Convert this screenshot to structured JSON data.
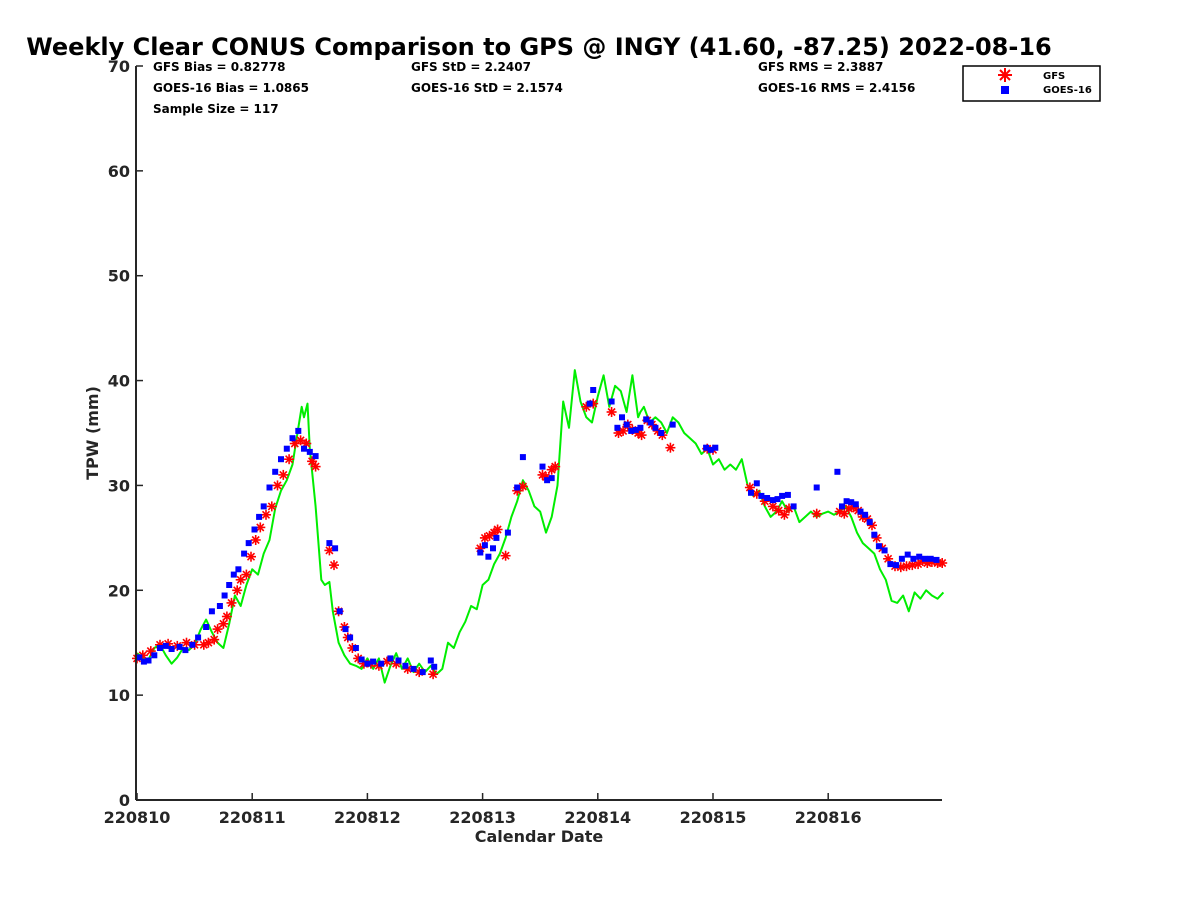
{
  "chart_data": {
    "type": "line",
    "title": "Weekly Clear CONUS Comparison to GPS @ INGY (41.60, -87.25) 2022-08-16",
    "xlabel": "Calendar Date",
    "ylabel": "TPW (mm)",
    "xlim": [
      220810,
      220817
    ],
    "ylim": [
      0,
      70
    ],
    "x_ticks": [
      "220810",
      "220811",
      "220812",
      "220813",
      "220814",
      "220815",
      "220816"
    ],
    "y_ticks": [
      "0",
      "10",
      "20",
      "30",
      "40",
      "50",
      "60",
      "70"
    ],
    "grid": false,
    "legend_position": "top-right",
    "stats": {
      "gfs_bias": "GFS Bias = 0.82778",
      "goes_bias": "GOES-16 Bias = 1.0865",
      "sample_size": "Sample Size = 117",
      "gfs_std": "GFS StD = 2.2407",
      "goes_std": "GOES-16 StD = 2.1574",
      "gfs_rms": "GFS RMS = 2.3887",
      "goes_rms": "GOES-16 RMS = 2.4156"
    },
    "series": [
      {
        "name": "GFS",
        "marker": "asterisk",
        "color": "#ff0000",
        "x": [
          0.0,
          0.05,
          0.12,
          0.2,
          0.27,
          0.35,
          0.43,
          0.5,
          0.58,
          0.62,
          0.67,
          0.7,
          0.75,
          0.78,
          0.82,
          0.87,
          0.9,
          0.95,
          0.99,
          1.03,
          1.07,
          1.12,
          1.17,
          1.22,
          1.27,
          1.32,
          1.37,
          1.42,
          1.47,
          1.52,
          1.55,
          1.67,
          1.71,
          1.75,
          1.8,
          1.83,
          1.87,
          1.92,
          1.97,
          2.03,
          2.1,
          2.17,
          2.25,
          2.35,
          2.45,
          2.57,
          2.98,
          3.02,
          3.06,
          3.1,
          3.13,
          3.2,
          3.3,
          3.35,
          3.52,
          3.55,
          3.6,
          3.63,
          3.9,
          3.96,
          4.12,
          4.18,
          4.22,
          4.26,
          4.3,
          4.35,
          4.38,
          4.43,
          4.47,
          4.52,
          4.56,
          4.63,
          4.95,
          5.0,
          5.32,
          5.38,
          5.45,
          5.52,
          5.57,
          5.62,
          5.66,
          5.9,
          6.1,
          6.14,
          6.18,
          6.22,
          6.26,
          6.3,
          6.34,
          6.38,
          6.42,
          6.47,
          6.52,
          6.58,
          6.63,
          6.68,
          6.73,
          6.78,
          6.82,
          6.86,
          6.9,
          6.95,
          6.99
        ],
        "y": [
          13.5,
          13.8,
          14.2,
          14.8,
          14.9,
          14.7,
          15.0,
          14.8,
          14.8,
          15.0,
          15.3,
          16.3,
          16.8,
          17.5,
          18.8,
          20.0,
          21.0,
          21.5,
          23.2,
          24.8,
          26.0,
          27.2,
          28.0,
          30.0,
          31.0,
          32.5,
          34.0,
          34.3,
          34.0,
          32.3,
          31.8,
          23.8,
          22.4,
          18.0,
          16.5,
          15.5,
          14.5,
          13.5,
          13.0,
          13.0,
          12.8,
          13.2,
          13.0,
          12.5,
          12.2,
          12.0,
          24.0,
          25.0,
          25.2,
          25.5,
          25.8,
          23.3,
          29.5,
          29.9,
          31.0,
          30.8,
          31.5,
          31.8,
          37.5,
          37.8,
          37.0,
          35.0,
          35.2,
          35.8,
          35.3,
          35.0,
          34.8,
          36.2,
          35.8,
          35.2,
          34.8,
          33.6,
          33.5,
          33.4,
          29.8,
          29.2,
          28.5,
          28.0,
          27.6,
          27.2,
          27.8,
          27.3,
          27.5,
          27.3,
          27.8,
          27.9,
          27.6,
          27.0,
          26.8,
          26.2,
          25.0,
          24.0,
          23.0,
          22.3,
          22.2,
          22.3,
          22.4,
          22.5,
          22.8,
          22.6,
          22.7,
          22.6,
          22.6
        ]
      },
      {
        "name": "GOES-16",
        "marker": "square",
        "color": "#0000ff",
        "x": [
          0.02,
          0.06,
          0.1,
          0.15,
          0.2,
          0.25,
          0.3,
          0.37,
          0.42,
          0.48,
          0.53,
          0.6,
          0.65,
          0.72,
          0.76,
          0.8,
          0.84,
          0.88,
          0.93,
          0.97,
          1.02,
          1.06,
          1.1,
          1.15,
          1.2,
          1.25,
          1.3,
          1.35,
          1.4,
          1.45,
          1.5,
          1.55,
          1.67,
          1.72,
          1.76,
          1.81,
          1.85,
          1.9,
          1.95,
          2.0,
          2.05,
          2.12,
          2.2,
          2.27,
          2.33,
          2.4,
          2.48,
          2.55,
          2.58,
          2.98,
          3.02,
          3.05,
          3.09,
          3.12,
          3.22,
          3.3,
          3.35,
          3.52,
          3.56,
          3.6,
          3.93,
          3.96,
          4.12,
          4.17,
          4.21,
          4.25,
          4.29,
          4.33,
          4.37,
          4.42,
          4.46,
          4.5,
          4.55,
          4.65,
          4.94,
          4.98,
          5.02,
          5.33,
          5.38,
          5.42,
          5.47,
          5.52,
          5.56,
          5.6,
          5.65,
          5.7,
          5.9,
          6.08,
          6.12,
          6.16,
          6.2,
          6.24,
          6.28,
          6.32,
          6.36,
          6.4,
          6.44,
          6.49,
          6.54,
          6.59,
          6.64,
          6.69,
          6.74,
          6.79,
          6.84,
          6.89,
          6.94
        ],
        "y": [
          13.6,
          13.2,
          13.3,
          13.8,
          14.5,
          14.7,
          14.4,
          14.6,
          14.3,
          14.8,
          15.5,
          16.5,
          18.0,
          18.5,
          19.5,
          20.5,
          21.5,
          22.0,
          23.5,
          24.5,
          25.8,
          27.0,
          28.0,
          29.8,
          31.3,
          32.5,
          33.5,
          34.5,
          35.2,
          33.5,
          33.2,
          32.8,
          24.5,
          24.0,
          18.0,
          16.3,
          15.5,
          14.5,
          13.4,
          13.0,
          13.2,
          13.0,
          13.5,
          13.3,
          12.8,
          12.5,
          12.2,
          13.3,
          12.7,
          23.6,
          24.3,
          23.2,
          24.0,
          25.0,
          25.5,
          29.8,
          32.7,
          31.8,
          30.5,
          30.7,
          37.8,
          39.1,
          38.0,
          35.5,
          36.5,
          35.8,
          35.2,
          35.3,
          35.5,
          36.3,
          36.0,
          35.5,
          35.0,
          35.8,
          33.6,
          33.4,
          33.6,
          29.3,
          30.2,
          29.0,
          28.8,
          28.6,
          28.7,
          29.0,
          29.1,
          28.0,
          29.8,
          31.3,
          28.0,
          28.5,
          28.4,
          28.2,
          27.5,
          27.2,
          26.5,
          25.3,
          24.2,
          23.8,
          22.5,
          22.4,
          23.0,
          23.4,
          23.0,
          23.2,
          23.0,
          23.0,
          22.9
        ]
      },
      {
        "name": "GPS",
        "marker": "line",
        "color": "#00ee00",
        "x": [
          0.0,
          0.05,
          0.1,
          0.15,
          0.2,
          0.25,
          0.3,
          0.35,
          0.4,
          0.45,
          0.5,
          0.55,
          0.6,
          0.65,
          0.7,
          0.75,
          0.8,
          0.85,
          0.9,
          0.95,
          1.0,
          1.05,
          1.1,
          1.15,
          1.2,
          1.25,
          1.3,
          1.35,
          1.4,
          1.43,
          1.45,
          1.48,
          1.5,
          1.55,
          1.6,
          1.63,
          1.67,
          1.7,
          1.75,
          1.8,
          1.85,
          1.9,
          1.95,
          2.0,
          2.05,
          2.1,
          2.15,
          2.2,
          2.25,
          2.3,
          2.35,
          2.4,
          2.45,
          2.5,
          2.55,
          2.6,
          2.65,
          2.7,
          2.75,
          2.8,
          2.85,
          2.9,
          2.95,
          3.0,
          3.05,
          3.1,
          3.15,
          3.2,
          3.25,
          3.3,
          3.35,
          3.4,
          3.45,
          3.5,
          3.55,
          3.6,
          3.65,
          3.7,
          3.75,
          3.8,
          3.85,
          3.9,
          3.95,
          4.0,
          4.05,
          4.1,
          4.15,
          4.2,
          4.25,
          4.3,
          4.35,
          4.37,
          4.4,
          4.45,
          4.5,
          4.55,
          4.6,
          4.65,
          4.7,
          4.75,
          4.8,
          4.85,
          4.9,
          4.95,
          5.0,
          5.05,
          5.1,
          5.15,
          5.2,
          5.25,
          5.3,
          5.35,
          5.4,
          5.45,
          5.5,
          5.55,
          5.6,
          5.65,
          5.7,
          5.75,
          5.8,
          5.85,
          5.9,
          5.95,
          6.0,
          6.05,
          6.1,
          6.15,
          6.2,
          6.25,
          6.3,
          6.35,
          6.4,
          6.45,
          6.5,
          6.55,
          6.6,
          6.65,
          6.7,
          6.75,
          6.8,
          6.85,
          6.9,
          6.95,
          7.0
        ],
        "y": [
          14.0,
          13.6,
          13.4,
          14.5,
          14.8,
          13.8,
          13.0,
          13.6,
          14.5,
          14.3,
          14.8,
          16.2,
          17.2,
          16.0,
          15.0,
          14.5,
          16.8,
          19.5,
          18.5,
          20.5,
          22.0,
          21.5,
          23.5,
          24.8,
          27.8,
          29.5,
          30.5,
          32.0,
          35.5,
          37.5,
          36.5,
          37.8,
          33.5,
          28.0,
          21.0,
          20.5,
          20.8,
          18.0,
          15.0,
          13.8,
          13.0,
          12.8,
          12.5,
          13.5,
          12.5,
          13.5,
          11.2,
          12.8,
          14.0,
          12.5,
          13.5,
          12.2,
          13.0,
          12.2,
          12.8,
          12.0,
          12.5,
          15.0,
          14.5,
          16.0,
          17.0,
          18.5,
          18.2,
          20.5,
          21.0,
          22.5,
          23.5,
          25.0,
          27.0,
          28.5,
          30.5,
          29.5,
          28.0,
          27.5,
          25.5,
          27.0,
          30.0,
          38.0,
          35.5,
          41.0,
          38.0,
          36.5,
          36.0,
          38.5,
          40.5,
          37.5,
          39.5,
          39.0,
          37.0,
          40.5,
          36.5,
          37.0,
          37.5,
          36.0,
          36.5,
          36.0,
          35.0,
          36.5,
          36.0,
          35.0,
          34.5,
          34.0,
          33.0,
          33.5,
          32.0,
          32.5,
          31.5,
          32.0,
          31.5,
          32.5,
          30.0,
          29.0,
          29.5,
          28.0,
          27.0,
          27.5,
          28.5,
          27.5,
          28.0,
          26.5,
          27.0,
          27.5,
          27.0,
          27.3,
          27.5,
          27.2,
          27.5,
          28.0,
          27.0,
          25.5,
          24.5,
          24.0,
          23.5,
          22.0,
          21.0,
          19.0,
          18.8,
          19.5,
          18.0,
          19.8,
          19.2,
          20.0,
          19.5,
          19.2,
          19.8
        ]
      }
    ]
  }
}
